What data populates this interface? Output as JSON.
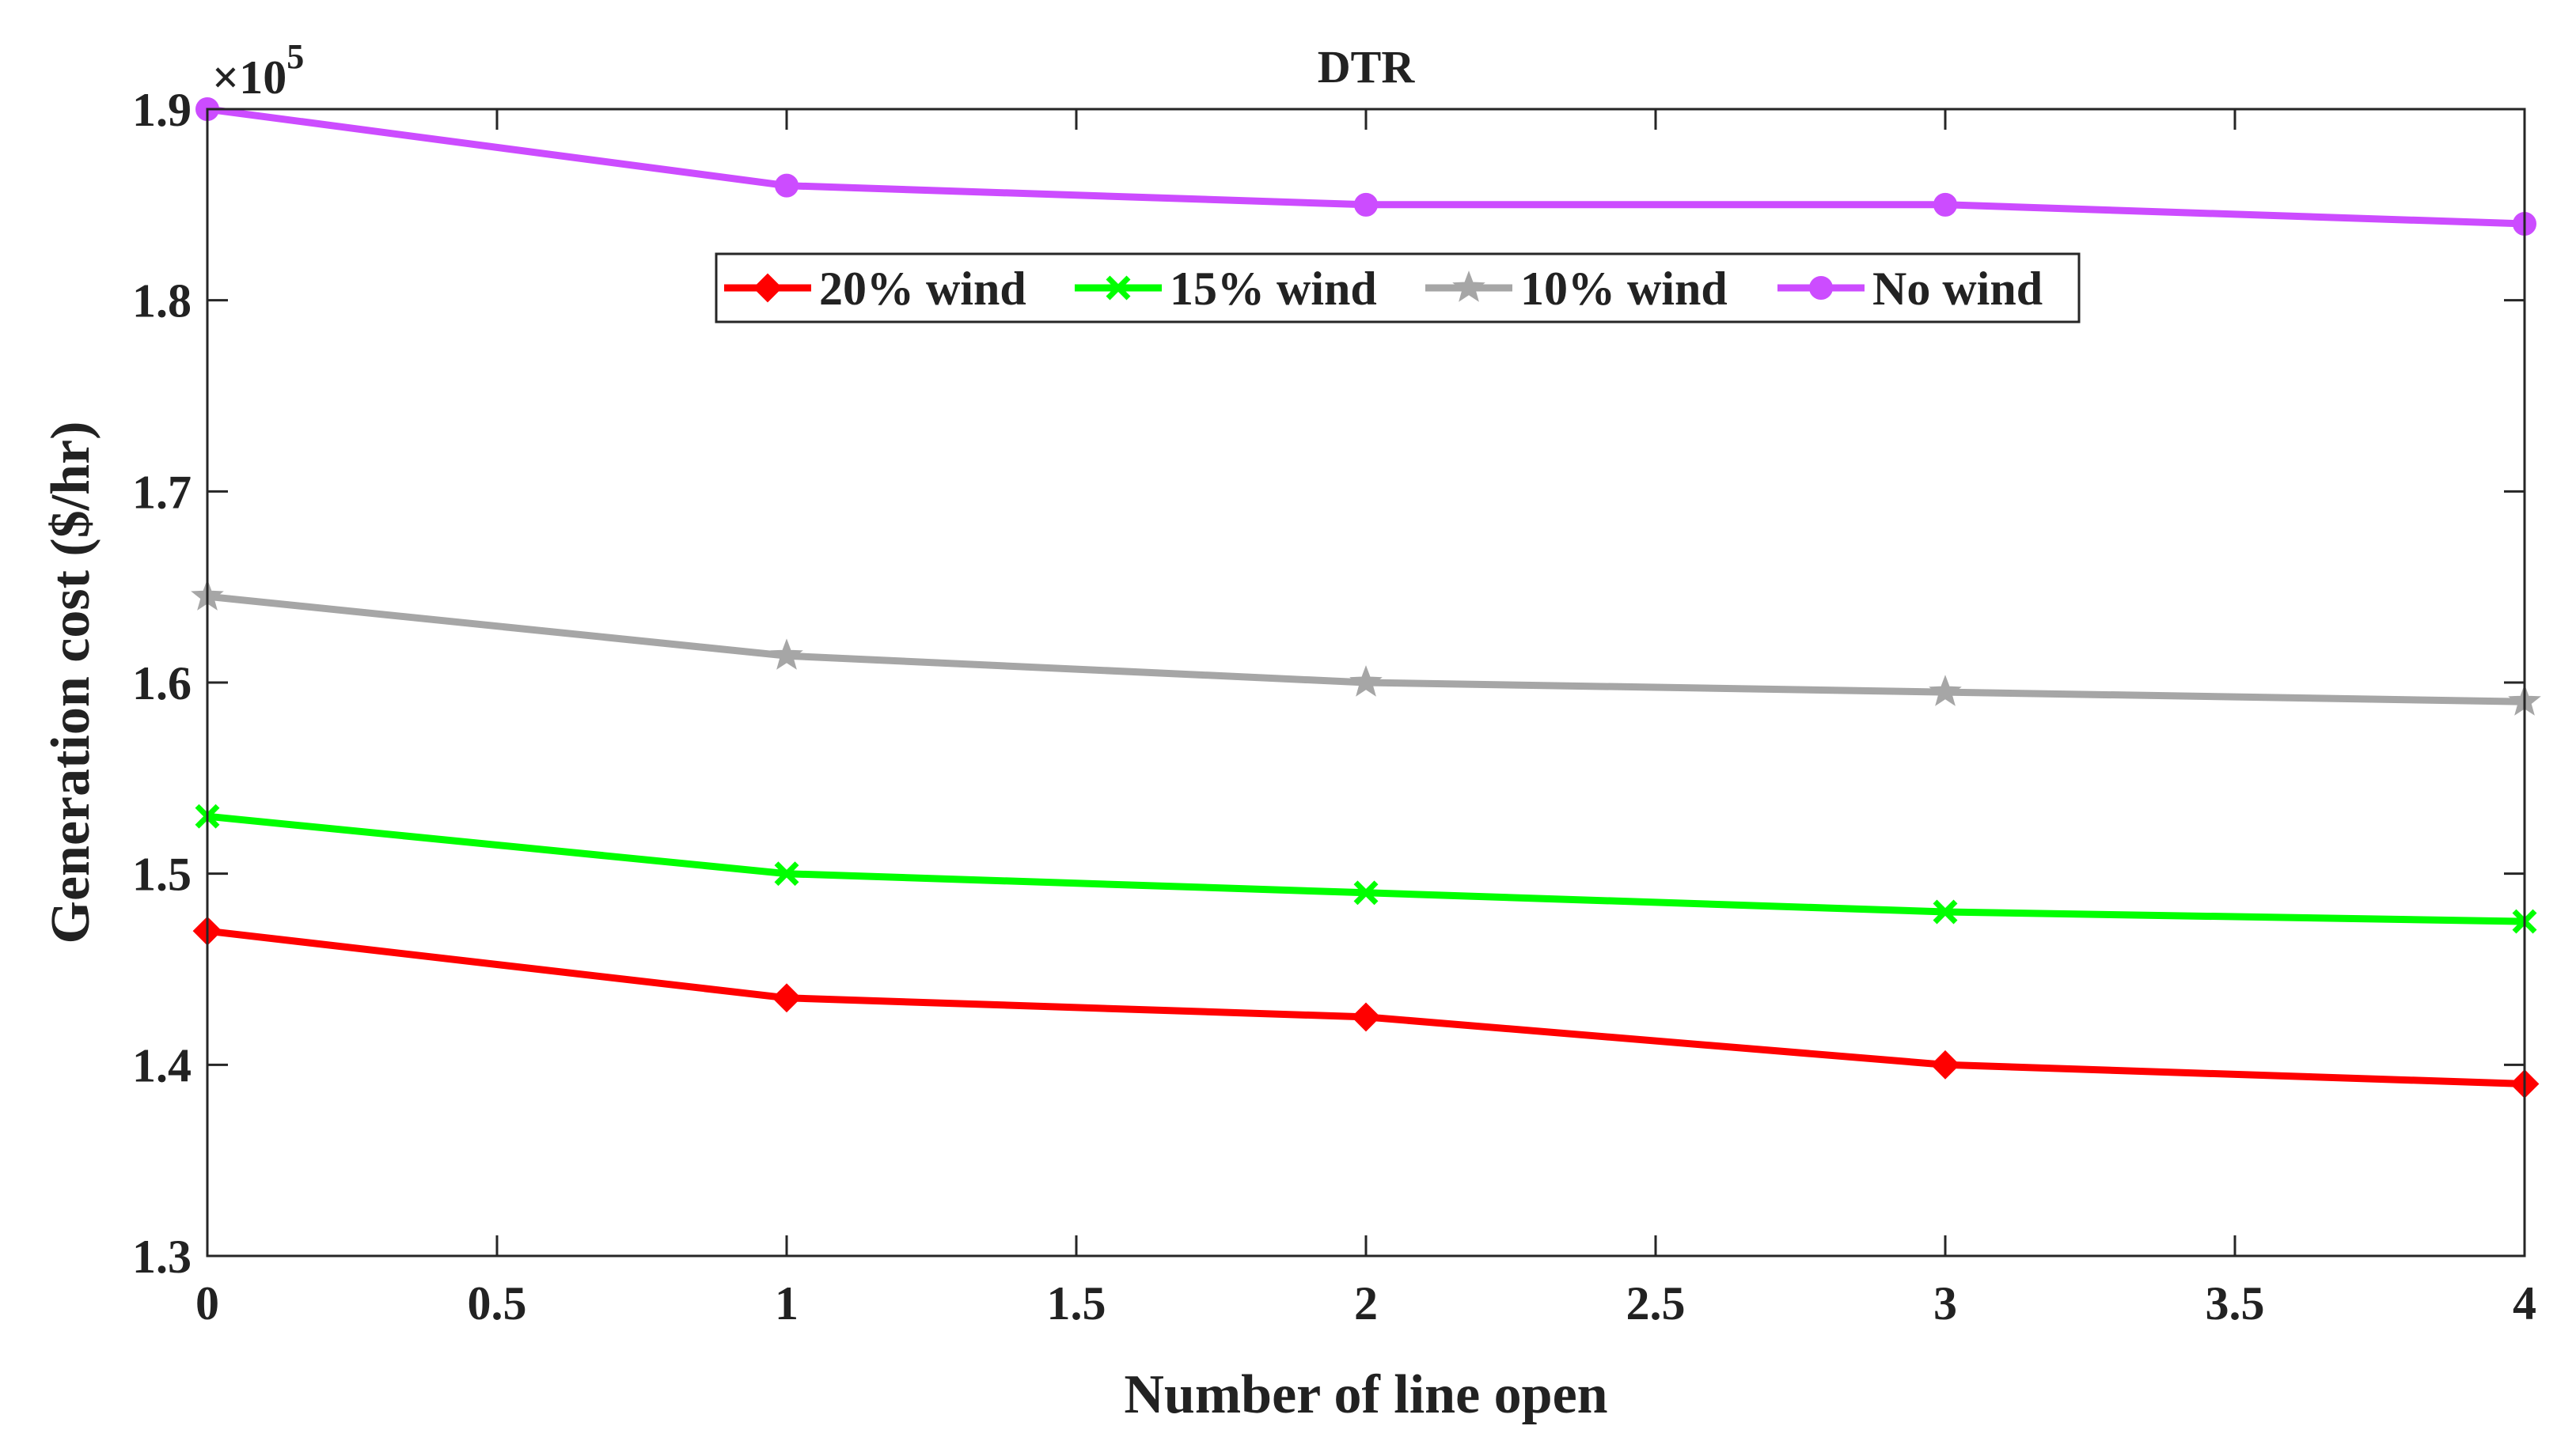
{
  "chart_data": {
    "type": "line",
    "title": "DTR",
    "xlabel": "Number of line open",
    "ylabel": "Generation cost ($/hr)",
    "y_multiplier_label": "×10",
    "y_multiplier_exponent": "5",
    "xlim": [
      0,
      4
    ],
    "ylim": [
      1.3,
      1.9
    ],
    "xticks": [
      0,
      0.5,
      1,
      1.5,
      2,
      2.5,
      3,
      3.5,
      4
    ],
    "xtick_labels": [
      "0",
      "0.5",
      "1",
      "1.5",
      "2",
      "2.5",
      "3",
      "3.5",
      "4"
    ],
    "yticks": [
      1.3,
      1.4,
      1.5,
      1.6,
      1.7,
      1.8,
      1.9
    ],
    "ytick_labels": [
      "1.3",
      "1.4",
      "1.5",
      "1.6",
      "1.7",
      "1.8",
      "1.9"
    ],
    "x": [
      0,
      1,
      2,
      3,
      4
    ],
    "legend_position": "upper-center",
    "series": [
      {
        "name": "20% wind",
        "color": "#ff0000",
        "marker": "diamond",
        "values": [
          1.47,
          1.435,
          1.425,
          1.4,
          1.39
        ]
      },
      {
        "name": "15% wind",
        "color": "#00ff00",
        "marker": "x",
        "values": [
          1.53,
          1.5,
          1.49,
          1.48,
          1.475
        ]
      },
      {
        "name": "10% wind",
        "color": "#a6a6a6",
        "marker": "star",
        "values": [
          1.645,
          1.614,
          1.6,
          1.595,
          1.59
        ]
      },
      {
        "name": "No wind",
        "color": "#cc4cff",
        "marker": "circle",
        "values": [
          1.9,
          1.86,
          1.85,
          1.85,
          1.84
        ]
      }
    ]
  }
}
